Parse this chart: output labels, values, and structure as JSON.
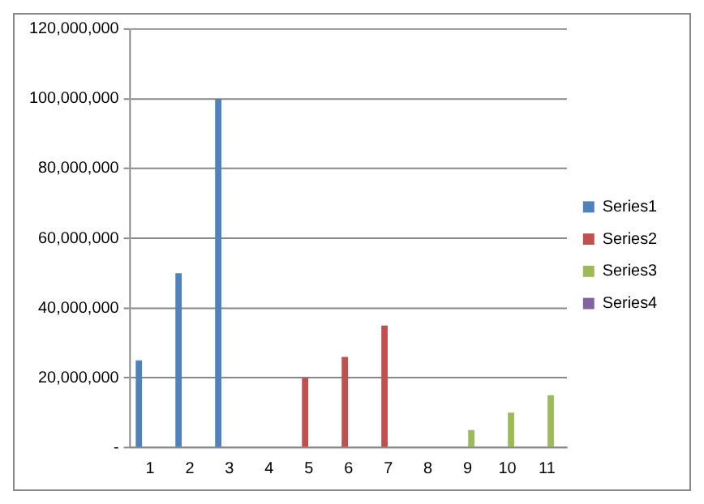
{
  "chart_data": {
    "type": "bar",
    "categories": [
      "1",
      "2",
      "3",
      "4",
      "5",
      "6",
      "7",
      "8",
      "9",
      "10",
      "11"
    ],
    "series": [
      {
        "name": "Series1",
        "color": "#4f81bd",
        "values": [
          25000000,
          50000000,
          100000000,
          null,
          null,
          null,
          null,
          null,
          null,
          null,
          null
        ]
      },
      {
        "name": "Series2",
        "color": "#c0504d",
        "values": [
          null,
          null,
          null,
          null,
          20000000,
          26000000,
          35000000,
          null,
          null,
          null,
          null
        ]
      },
      {
        "name": "Series3",
        "color": "#9bbb59",
        "values": [
          null,
          null,
          null,
          null,
          null,
          null,
          null,
          null,
          5000000,
          10000000,
          15000000
        ]
      },
      {
        "name": "Series4",
        "color": "#8064a2",
        "values": [
          null,
          null,
          null,
          null,
          null,
          null,
          null,
          null,
          null,
          null,
          null
        ]
      }
    ],
    "ylim": [
      0,
      120000000
    ],
    "yticks": [
      {
        "value": 0,
        "label": "-"
      },
      {
        "value": 20000000,
        "label": "20,000,000"
      },
      {
        "value": 40000000,
        "label": "40,000,000"
      },
      {
        "value": 60000000,
        "label": "60,000,000"
      },
      {
        "value": 80000000,
        "label": "80,000,000"
      },
      {
        "value": 100000000,
        "label": "100,000,000"
      },
      {
        "value": 120000000,
        "label": "120,000,000"
      }
    ],
    "grid": "y",
    "legend": "right"
  }
}
